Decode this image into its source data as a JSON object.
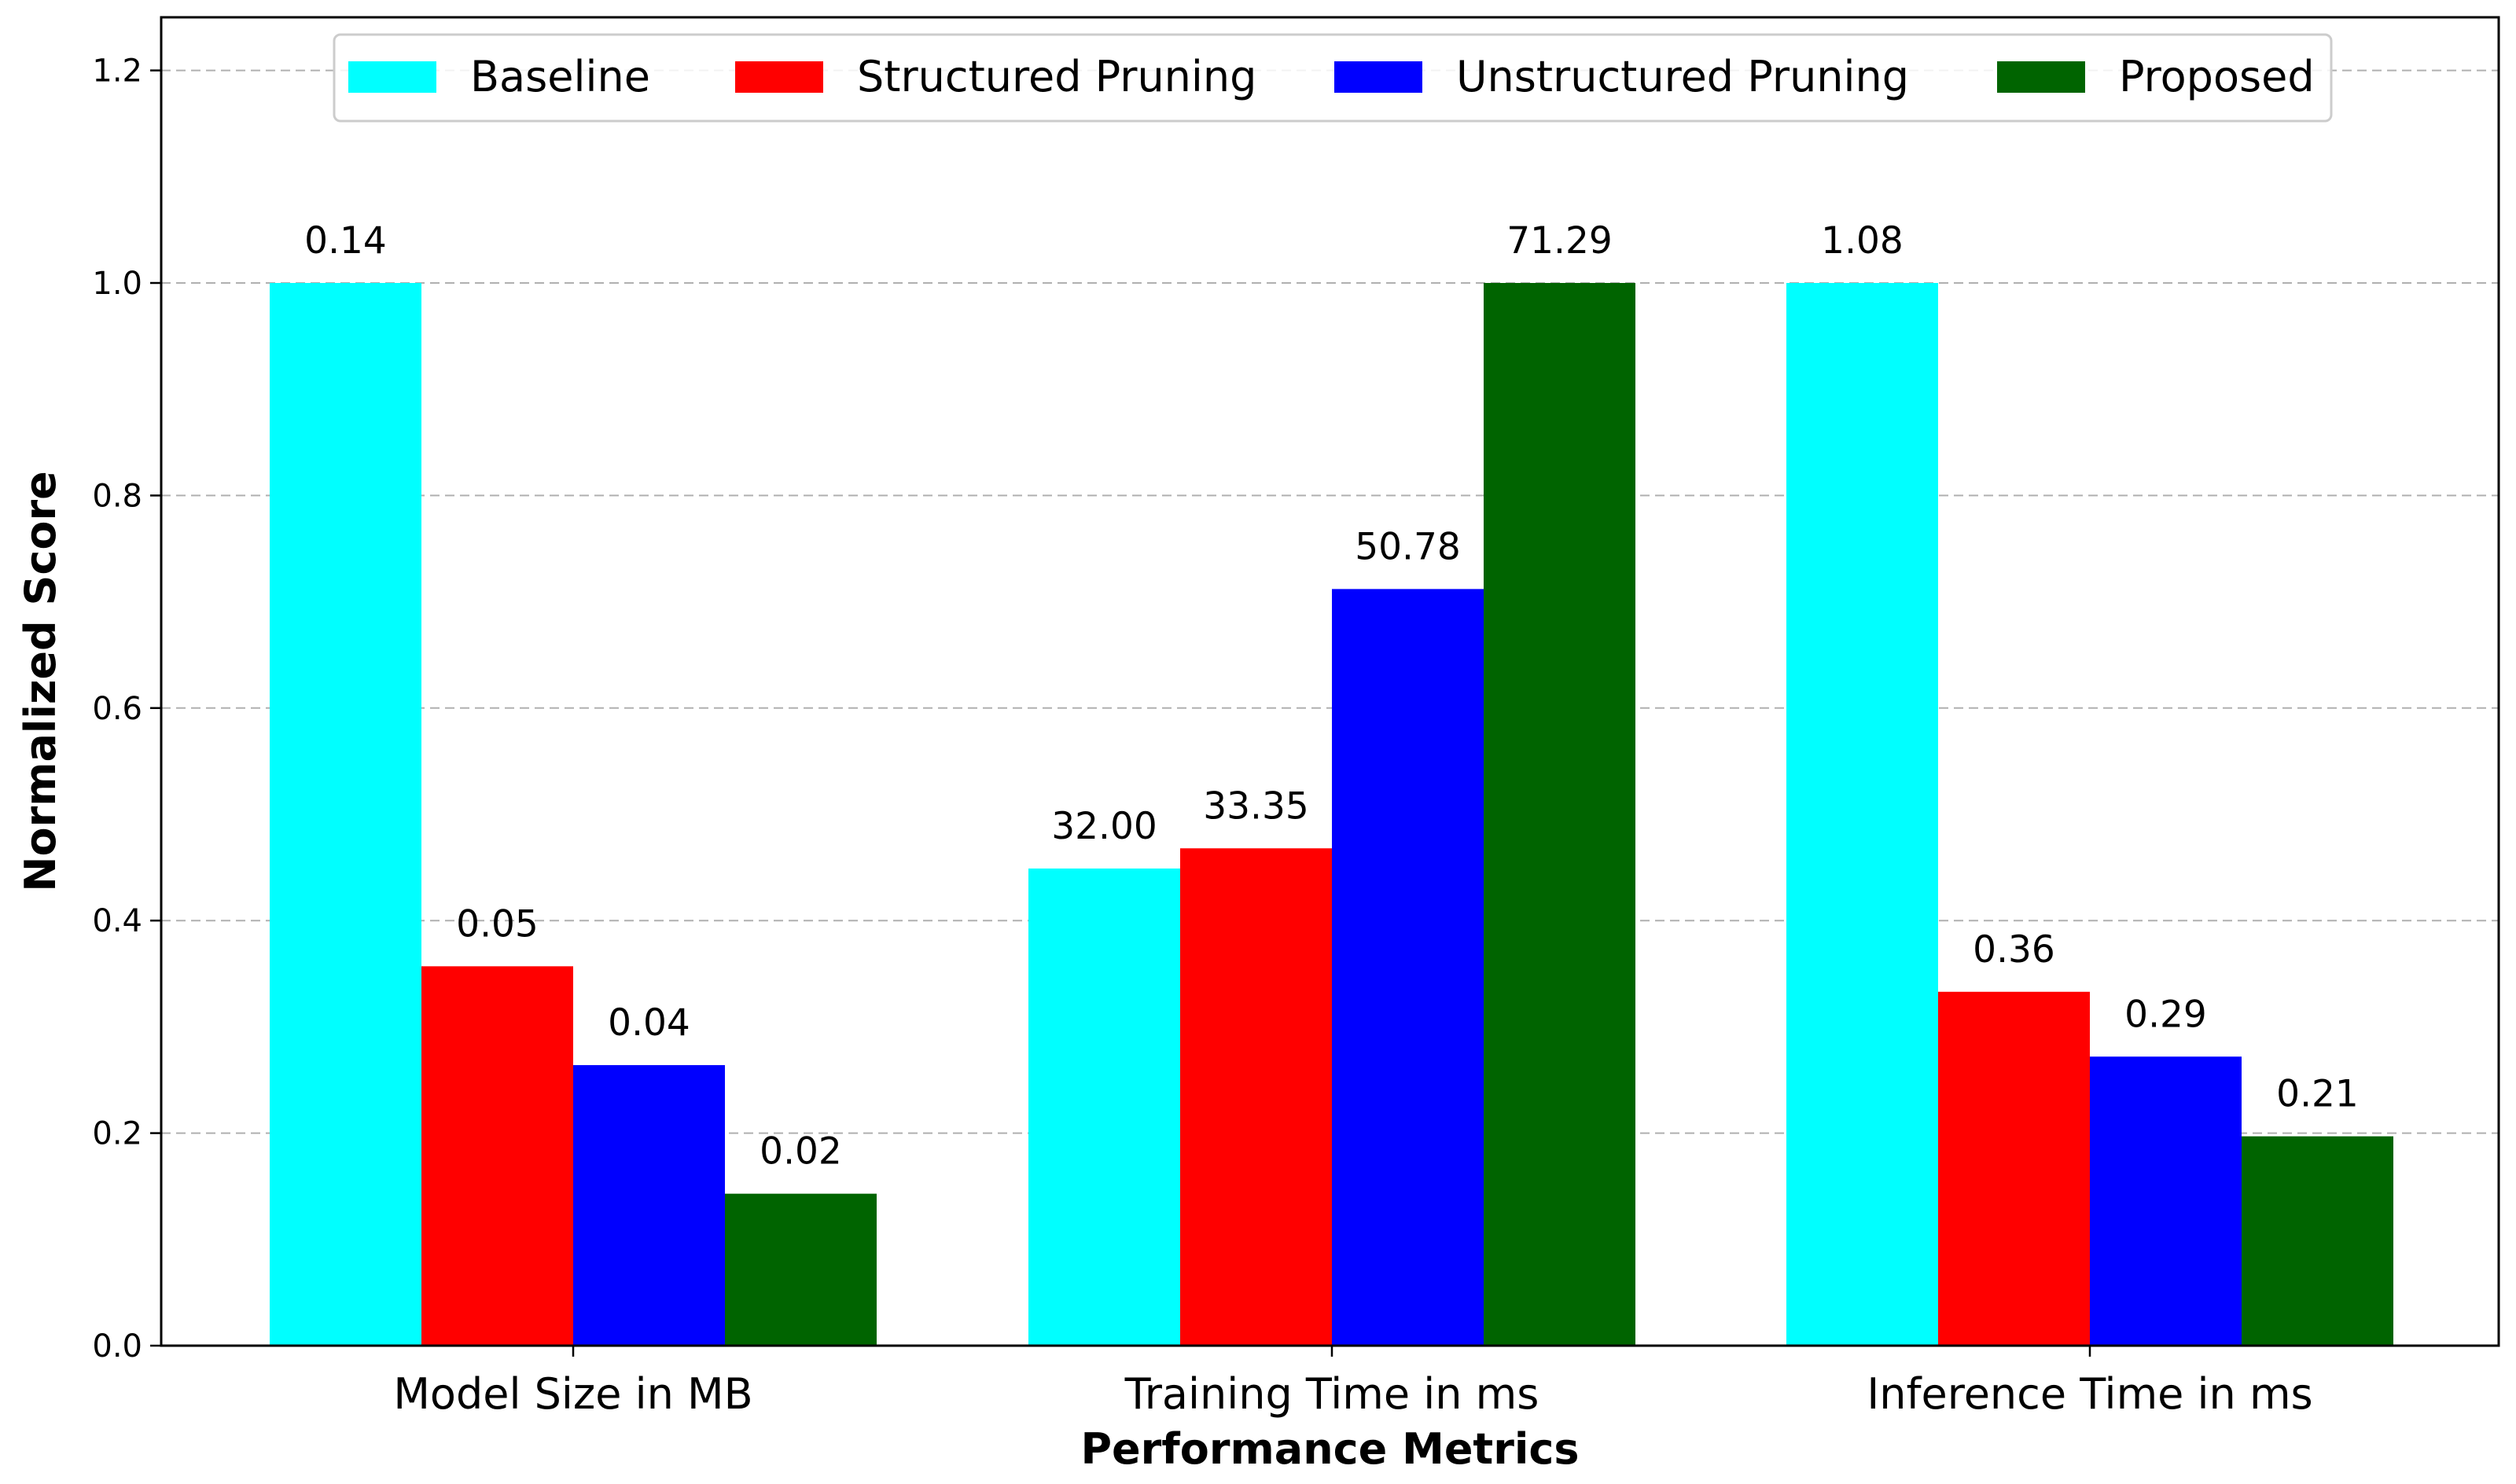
{
  "chart_data": {
    "type": "bar",
    "title": "",
    "xlabel": "Performance Metrics",
    "ylabel": "Normalized Score",
    "ylim": [
      0,
      1.25
    ],
    "yticks": [
      "0.0",
      "0.2",
      "0.4",
      "0.6",
      "0.8",
      "1.0",
      "1.2"
    ],
    "ytick_values": [
      0,
      0.2,
      0.4,
      0.6,
      0.8,
      1.0,
      1.2
    ],
    "grid": "horizontal-dashed",
    "legend_position": "top-center",
    "categories": [
      "Model Size in MB",
      "Training Time in ms",
      "Inference Time in ms"
    ],
    "series": [
      {
        "name": "Baseline",
        "color": "#00ffff",
        "values": [
          1.0,
          0.449,
          1.0
        ],
        "labels": [
          "0.14",
          "32.00",
          "1.08"
        ]
      },
      {
        "name": "Structured Pruning",
        "color": "#ff0000",
        "values": [
          0.357,
          0.468,
          0.333
        ],
        "labels": [
          "0.05",
          "33.35",
          "0.36"
        ]
      },
      {
        "name": "Unstructured Pruning",
        "color": "#0000ff",
        "values": [
          0.264,
          0.712,
          0.272
        ],
        "labels": [
          "0.04",
          "50.78",
          "0.29"
        ]
      },
      {
        "name": "Proposed",
        "color": "#006400",
        "values": [
          0.143,
          1.0,
          0.197
        ],
        "labels": [
          "0.02",
          "71.29",
          "0.21"
        ]
      }
    ]
  }
}
